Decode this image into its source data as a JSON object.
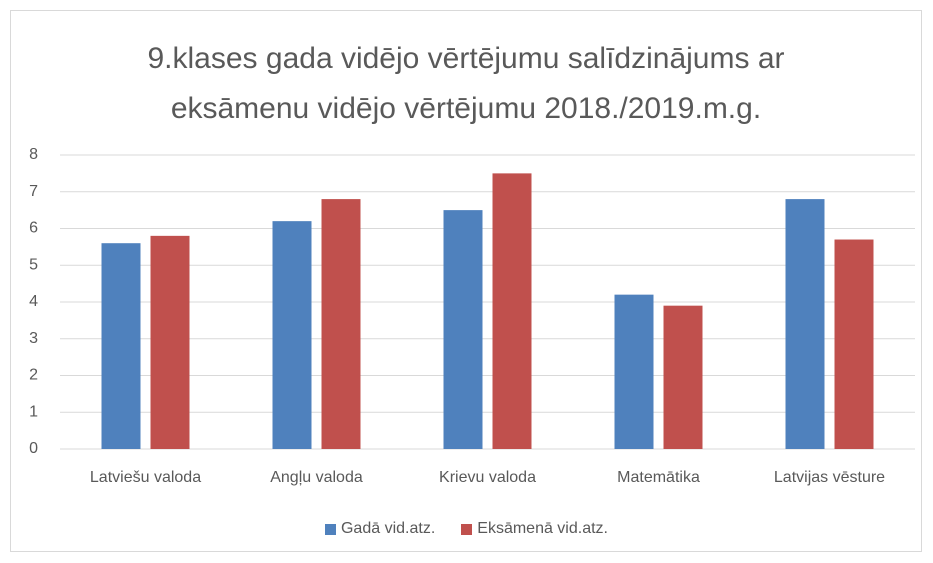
{
  "chart_data": {
    "type": "bar",
    "title": "9.klases gada vidējo vērtējumu salīdzinājums ar eksāmenu vidējo vērtējumu 2018./2019.m.g.",
    "categories": [
      "Latviešu valoda",
      "Angļu valoda",
      "Krievu valoda",
      "Matemātika",
      "Latvijas vēsture"
    ],
    "series": [
      {
        "name": "Gadā vid.atz.",
        "color": "#4f81bd",
        "values": [
          5.6,
          6.2,
          6.5,
          4.2,
          6.8
        ]
      },
      {
        "name": "Eksāmenā vid.atz.",
        "color": "#c0504d",
        "values": [
          5.8,
          6.8,
          7.5,
          3.9,
          5.7
        ]
      }
    ],
    "ylim": [
      0,
      8
    ],
    "yticks": [
      0,
      1,
      2,
      3,
      4,
      5,
      6,
      7,
      8
    ],
    "grid": true,
    "legend": "bottom"
  }
}
